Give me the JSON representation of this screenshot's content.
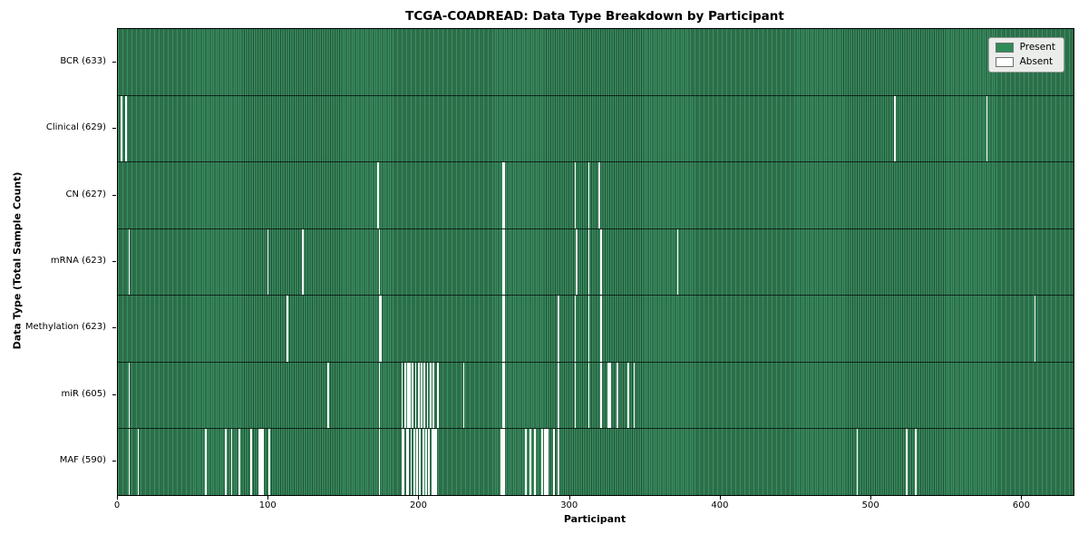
{
  "chart_data": {
    "type": "heatmap",
    "title": "TCGA-COADREAD: Data Type Breakdown by Participant",
    "xlabel": "Participant",
    "ylabel": "Data Type (Total Sample Count)",
    "x_ticks": [
      0,
      100,
      200,
      300,
      400,
      500,
      600
    ],
    "xlim": [
      0,
      634
    ],
    "n_participants": 633,
    "grid": false,
    "legend_position": "upper right",
    "legend": [
      {
        "label": "Present",
        "color": "#2e8b57"
      },
      {
        "label": "Absent",
        "color": "#ffffff"
      }
    ],
    "colors": {
      "present_fill": "#3c8e62",
      "present_edge": "#1d4f33",
      "absent": "#ffffff",
      "legend_bg": "#eaedea"
    },
    "rows": [
      {
        "label": "BCR (633)",
        "data_type": "BCR",
        "total": 633,
        "absent_participants": []
      },
      {
        "label": "Clinical (629)",
        "data_type": "Clinical",
        "total": 629,
        "absent_participants": [
          2,
          5,
          515,
          576
        ]
      },
      {
        "label": "CN (627)",
        "data_type": "CN",
        "total": 627,
        "absent_participants": [
          172,
          255,
          256,
          303,
          312,
          319
        ]
      },
      {
        "label": "mRNA (623)",
        "data_type": "mRNA",
        "total": 623,
        "absent_participants": [
          7,
          99,
          122,
          173,
          255,
          256,
          304,
          312,
          320,
          371
        ]
      },
      {
        "label": "Methylation (623)",
        "data_type": "Methylation",
        "total": 623,
        "absent_participants": [
          112,
          173,
          174,
          255,
          256,
          292,
          303,
          312,
          320,
          608
        ]
      },
      {
        "label": "miR (605)",
        "data_type": "miR",
        "total": 605,
        "absent_participants": [
          7,
          139,
          173,
          188,
          190,
          192,
          193,
          195,
          197,
          199,
          201,
          203,
          205,
          207,
          209,
          212,
          229,
          255,
          256,
          292,
          303,
          312,
          320,
          325,
          326,
          331,
          338,
          342
        ]
      },
      {
        "label": "MAF (590)",
        "data_type": "MAF",
        "total": 590,
        "absent_participants": [
          7,
          13,
          58,
          71,
          75,
          80,
          88,
          93,
          94,
          95,
          96,
          100,
          173,
          188,
          189,
          191,
          192,
          194,
          196,
          198,
          200,
          202,
          204,
          206,
          208,
          209,
          210,
          211,
          254,
          255,
          256,
          270,
          273,
          276,
          281,
          283,
          284,
          285,
          289,
          292,
          490,
          523,
          529
        ]
      }
    ]
  }
}
